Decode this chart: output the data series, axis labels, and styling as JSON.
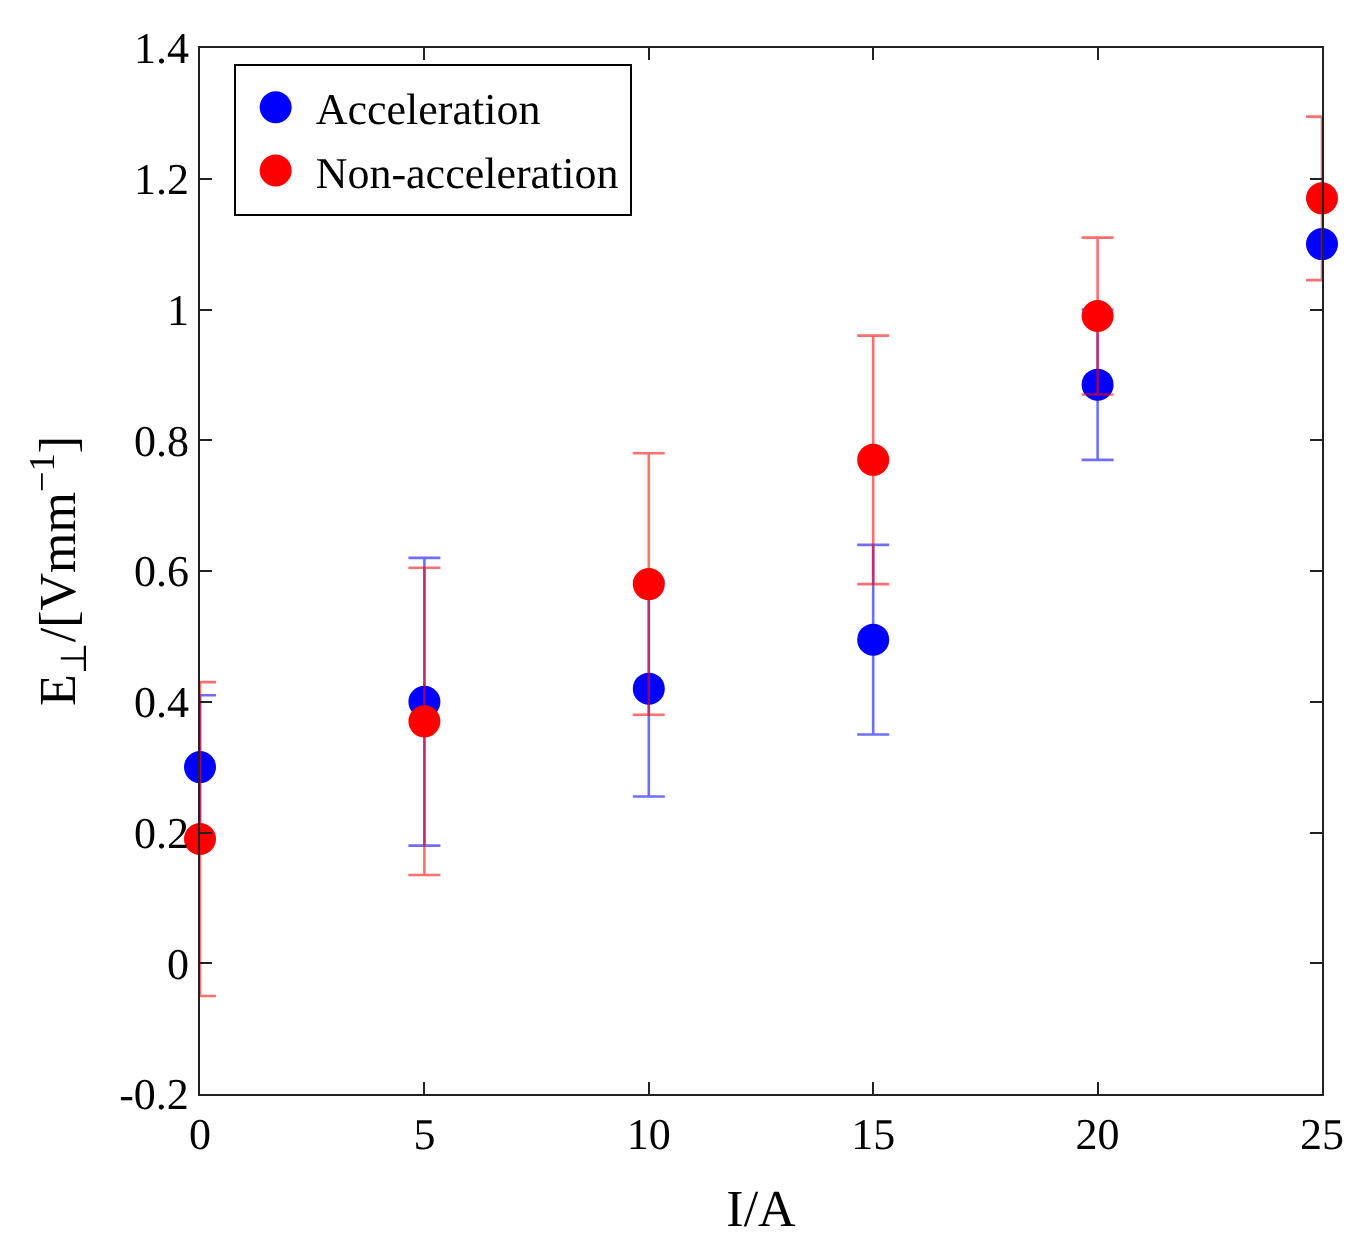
{
  "chart_data": {
    "type": "scatter",
    "xlabel": "I/A",
    "ylabel": "E$_{⊥}$/[Vmm$^{−1}$]",
    "x": [
      0,
      5,
      10,
      15,
      20,
      25
    ],
    "series": [
      {
        "name": "Acceleration",
        "color": "#0000ff",
        "values": [
          0.3,
          0.4,
          0.42,
          0.495,
          0.885,
          1.1
        ],
        "errors": [
          0.11,
          0.22,
          0.165,
          0.145,
          0.115,
          null
        ]
      },
      {
        "name": "Non-acceleration",
        "color": "#ff0000",
        "values": [
          0.19,
          0.37,
          0.58,
          0.77,
          0.99,
          1.17
        ],
        "errors": [
          0.24,
          0.235,
          0.2,
          0.19,
          0.12,
          0.125
        ]
      }
    ],
    "xlim": [
      0,
      25
    ],
    "xticks": [
      0,
      5,
      10,
      15,
      20,
      25
    ],
    "ylim": [
      -0.2,
      1.4
    ],
    "yticks": [
      -0.2,
      0,
      0.2,
      0.4,
      0.6,
      0.8,
      1,
      1.2,
      1.4
    ],
    "grid": false,
    "legend": "top left",
    "marker": "circle"
  }
}
